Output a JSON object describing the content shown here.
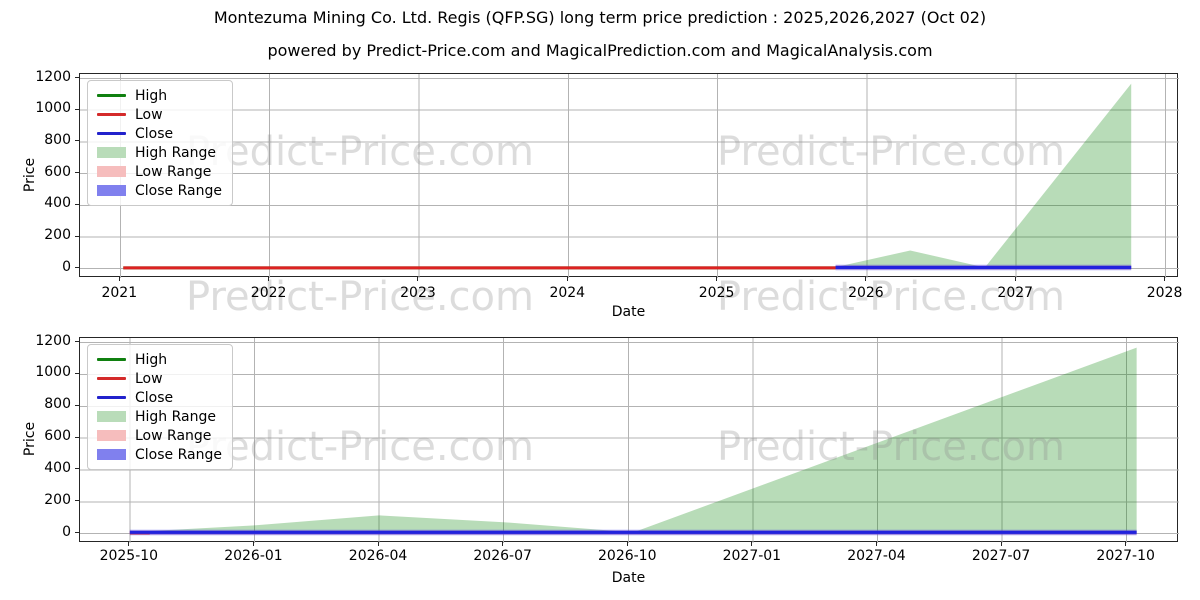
{
  "title": "Montezuma Mining Co. Ltd. Regis (QFP.SG) long term price prediction : 2025,2026,2027 (Oct 02)",
  "subtitle": "powered by Predict-Price.com and MagicalPrediction.com and MagicalAnalysis.com",
  "watermark": {
    "text": "Predict-Price.com"
  },
  "legend": {
    "items": [
      {
        "label": "High",
        "swatch": "line",
        "color": "#108010"
      },
      {
        "label": "Low",
        "swatch": "line",
        "color": "#d42a2a"
      },
      {
        "label": "Close",
        "swatch": "line",
        "color": "#2222cc"
      },
      {
        "label": "High Range",
        "swatch": "fill",
        "color": "#b9dcb9"
      },
      {
        "label": "Low Range",
        "swatch": "fill",
        "color": "#f6bdbd"
      },
      {
        "label": "Close Range",
        "swatch": "fill",
        "color": "#8080ee"
      }
    ]
  },
  "chart_data": [
    {
      "type": "line",
      "name": "long-term-history-and-prediction",
      "xlabel": "Date",
      "ylabel": "Price",
      "grid": true,
      "legend_position": "upper left",
      "xlim": [
        2020.73,
        2028.09
      ],
      "ylim": [
        -58.5,
        1228.5
      ],
      "yticks": [
        0,
        200,
        400,
        600,
        800,
        1000,
        1200
      ],
      "xticks": [
        {
          "value": 2021,
          "label": "2021"
        },
        {
          "value": 2022,
          "label": "2022"
        },
        {
          "value": 2023,
          "label": "2023"
        },
        {
          "value": 2024,
          "label": "2024"
        },
        {
          "value": 2025,
          "label": "2025"
        },
        {
          "value": 2026,
          "label": "2026"
        },
        {
          "value": 2027,
          "label": "2027"
        },
        {
          "value": 2028,
          "label": "2028"
        }
      ],
      "series": [
        {
          "name": "High Range",
          "kind": "area",
          "color": "rgba(0,128,0,0.28)",
          "base": 0,
          "points": [
            [
              2025.79,
              10
            ],
            [
              2026.29,
              115
            ],
            [
              2026.79,
              8
            ],
            [
              2027.77,
              1168
            ]
          ]
        },
        {
          "name": "Low Range",
          "kind": "band",
          "color": "rgba(255,80,80,0.35)",
          "upper": [
            [
              2025.79,
              20
            ],
            [
              2027.77,
              20
            ]
          ],
          "lower": [
            [
              2025.79,
              -6
            ],
            [
              2027.77,
              -6
            ]
          ]
        },
        {
          "name": "Close Range",
          "kind": "band",
          "color": "rgba(60,60,235,0.45)",
          "upper": [
            [
              2025.79,
              25
            ],
            [
              2027.77,
              25
            ]
          ],
          "lower": [
            [
              2025.79,
              -10
            ],
            [
              2027.77,
              -10
            ]
          ]
        },
        {
          "name": "High",
          "kind": "line",
          "color": "#108010",
          "points": [
            [
              2021.02,
              5
            ],
            [
              2025.79,
              5
            ]
          ]
        },
        {
          "name": "Low",
          "kind": "line",
          "color": "#dd2222",
          "points": [
            [
              2021.02,
              5
            ],
            [
              2025.79,
              5
            ]
          ]
        },
        {
          "name": "Close",
          "kind": "line",
          "color": "#2222dd",
          "points": [
            [
              2025.79,
              8
            ],
            [
              2027.77,
              8
            ]
          ]
        }
      ]
    },
    {
      "type": "line",
      "name": "prediction-zoom",
      "xlabel": "Date",
      "ylabel": "Price",
      "grid": true,
      "legend_position": "upper left",
      "xlim": [
        2025.65,
        2027.855
      ],
      "ylim": [
        -58.5,
        1228.5
      ],
      "yticks": [
        0,
        200,
        400,
        600,
        800,
        1000,
        1200
      ],
      "xticks": [
        {
          "value": 2025.75,
          "label": "2025-10"
        },
        {
          "value": 2026.0,
          "label": "2026-01"
        },
        {
          "value": 2026.25,
          "label": "2026-04"
        },
        {
          "value": 2026.5,
          "label": "2026-07"
        },
        {
          "value": 2026.75,
          "label": "2026-10"
        },
        {
          "value": 2027.0,
          "label": "2027-01"
        },
        {
          "value": 2027.25,
          "label": "2027-04"
        },
        {
          "value": 2027.5,
          "label": "2027-07"
        },
        {
          "value": 2027.75,
          "label": "2027-10"
        }
      ],
      "series": [
        {
          "name": "High Range",
          "kind": "area",
          "color": "rgba(0,128,0,0.28)",
          "base": 0,
          "points": [
            [
              2025.75,
              10
            ],
            [
              2026.0,
              52
            ],
            [
              2026.25,
              115
            ],
            [
              2026.5,
              72
            ],
            [
              2026.76,
              8
            ],
            [
              2027.77,
              1168
            ]
          ]
        },
        {
          "name": "Low Range",
          "kind": "band",
          "color": "rgba(255,80,80,0.35)",
          "upper": [
            [
              2025.75,
              20
            ],
            [
              2027.77,
              20
            ]
          ],
          "lower": [
            [
              2025.75,
              -6
            ],
            [
              2027.77,
              -6
            ]
          ]
        },
        {
          "name": "Close Range",
          "kind": "band",
          "color": "rgba(60,60,235,0.45)",
          "upper": [
            [
              2025.75,
              25
            ],
            [
              2027.77,
              25
            ]
          ],
          "lower": [
            [
              2025.75,
              -10
            ],
            [
              2027.77,
              -10
            ]
          ]
        },
        {
          "name": "Low",
          "kind": "line",
          "color": "#dd2222",
          "points": [
            [
              2025.75,
              5
            ],
            [
              2025.79,
              5
            ]
          ]
        },
        {
          "name": "Close",
          "kind": "line",
          "color": "#2222dd",
          "points": [
            [
              2025.75,
              8
            ],
            [
              2027.77,
              8
            ]
          ]
        }
      ]
    }
  ]
}
